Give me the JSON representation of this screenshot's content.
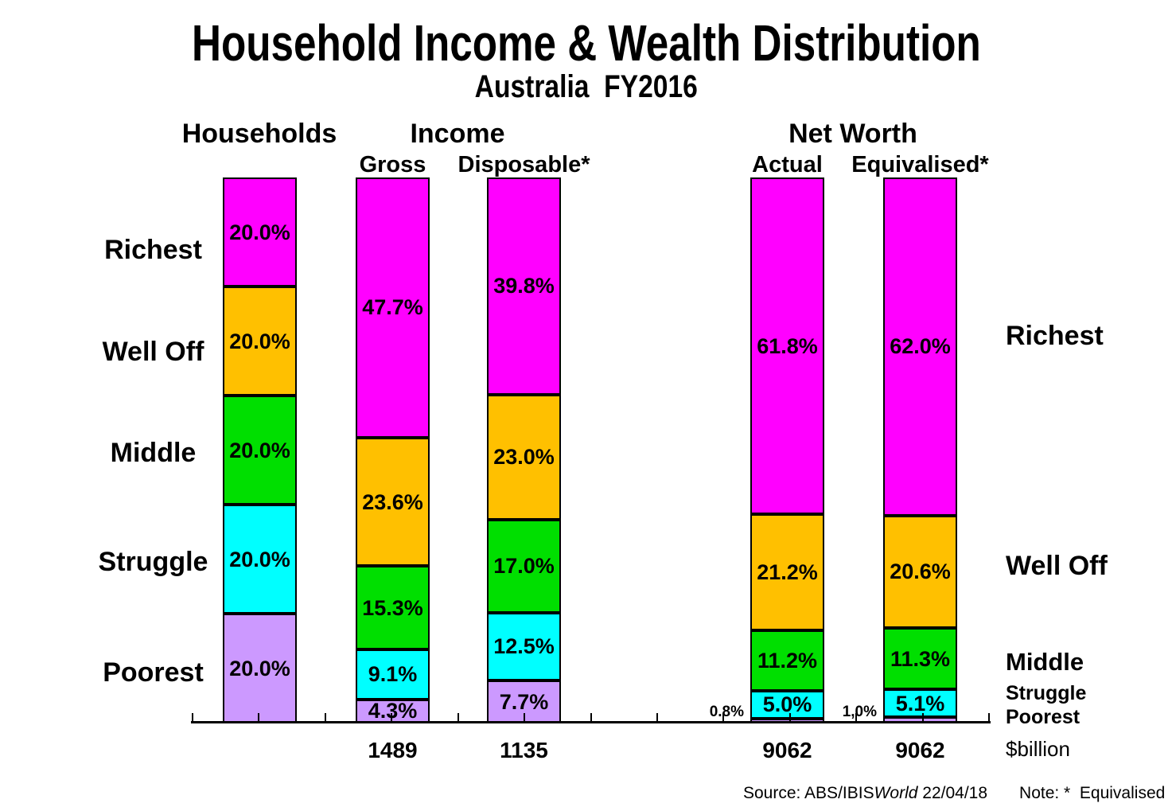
{
  "title": "Household Income & Wealth Distribution",
  "subtitle": "Australia  FY2016",
  "group_headers": {
    "households": "Households",
    "income": "Income",
    "net_worth": "Net Worth"
  },
  "tier_labels_left": [
    "Richest",
    "Well Off",
    "Middle",
    "Struggle",
    "Poorest"
  ],
  "tier_labels_right": [
    "Richest",
    "Well Off",
    "Middle",
    "Struggle",
    "Poorest"
  ],
  "axis_unit": "$billion",
  "colors": {
    "richest": "#FF00FF",
    "well_off": "#FFC000",
    "middle": "#00DF00",
    "struggle": "#00FFFF",
    "poorest": "#CC99FF",
    "axis": "#000000"
  },
  "footer": {
    "source_prefix": "Source: ABS/IBIS",
    "source_brand_italic": "World",
    "source_date": " 22/04/18",
    "note": "Note: *  Equivalised"
  },
  "chart_data": {
    "type": "bar",
    "stacked": true,
    "value_unit": "% of column total",
    "totals_unit": "$billion",
    "tiers_top_to_bottom": [
      "richest",
      "well_off",
      "middle",
      "struggle",
      "poorest"
    ],
    "columns": [
      {
        "id": "households",
        "group": "Households",
        "header": "",
        "total": "",
        "segments": [
          {
            "tier": "richest",
            "value": 20.0,
            "label": "20.0%"
          },
          {
            "tier": "well_off",
            "value": 20.0,
            "label": "20.0%"
          },
          {
            "tier": "middle",
            "value": 20.0,
            "label": "20.0%"
          },
          {
            "tier": "struggle",
            "value": 20.0,
            "label": "20.0%"
          },
          {
            "tier": "poorest",
            "value": 20.0,
            "label": "20.0%"
          }
        ]
      },
      {
        "id": "gross",
        "group": "Income",
        "header": "Gross",
        "total": "1489",
        "segments": [
          {
            "tier": "richest",
            "value": 47.7,
            "label": "47.7%"
          },
          {
            "tier": "well_off",
            "value": 23.6,
            "label": "23.6%"
          },
          {
            "tier": "middle",
            "value": 15.3,
            "label": "15.3%"
          },
          {
            "tier": "struggle",
            "value": 9.1,
            "label": "9.1%"
          },
          {
            "tier": "poorest",
            "value": 4.3,
            "label": "4.3%"
          }
        ]
      },
      {
        "id": "disposable",
        "group": "Income",
        "header": "Disposable*",
        "total": "1135",
        "segments": [
          {
            "tier": "richest",
            "value": 39.8,
            "label": "39.8%"
          },
          {
            "tier": "well_off",
            "value": 23.0,
            "label": "23.0%"
          },
          {
            "tier": "middle",
            "value": 17.0,
            "label": "17.0%"
          },
          {
            "tier": "struggle",
            "value": 12.5,
            "label": "12.5%"
          },
          {
            "tier": "poorest",
            "value": 7.7,
            "label": "7.7%"
          }
        ]
      },
      {
        "id": "actual",
        "group": "Net Worth",
        "header": "Actual",
        "total": "9062",
        "segments": [
          {
            "tier": "richest",
            "value": 61.8,
            "label": "61.8%"
          },
          {
            "tier": "well_off",
            "value": 21.2,
            "label": "21.2%"
          },
          {
            "tier": "middle",
            "value": 11.2,
            "label": "11.2%"
          },
          {
            "tier": "struggle",
            "value": 5.0,
            "label": "5.0%"
          },
          {
            "tier": "poorest",
            "value": 0.8,
            "label": "0.8%",
            "label_outside": true
          }
        ]
      },
      {
        "id": "equivalised",
        "group": "Net Worth",
        "header": "Equivalised*",
        "total": "9062",
        "segments": [
          {
            "tier": "richest",
            "value": 62.0,
            "label": "62.0%"
          },
          {
            "tier": "well_off",
            "value": 20.6,
            "label": "20.6%"
          },
          {
            "tier": "middle",
            "value": 11.3,
            "label": "11.3%"
          },
          {
            "tier": "struggle",
            "value": 5.1,
            "label": "5.1%"
          },
          {
            "tier": "poorest",
            "value": 1.0,
            "label": "1,0%",
            "label_outside": true
          }
        ]
      }
    ]
  }
}
